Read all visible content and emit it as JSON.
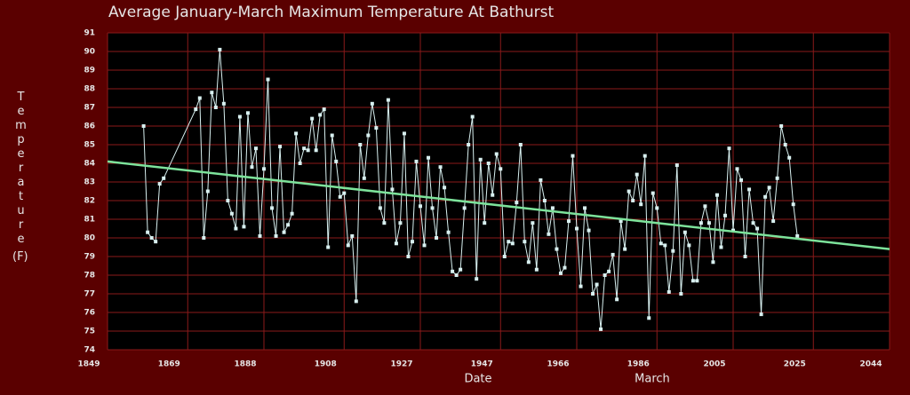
{
  "chart_data": {
    "type": "line",
    "title": "Average January-March Maximum Temperature At Bathurst",
    "xlabel": "Date",
    "xsublabel": "March",
    "ylabel": "Temperature",
    "yunit": "(F)",
    "xlim": [
      1849,
      2044
    ],
    "ylim": [
      74,
      91
    ],
    "xticks": [
      1849,
      1869,
      1888,
      1908,
      1927,
      1947,
      1966,
      1986,
      2005,
      2025,
      2044
    ],
    "yticks": [
      74,
      75,
      76,
      77,
      78,
      79,
      80,
      81,
      82,
      83,
      84,
      85,
      86,
      87,
      88,
      89,
      90,
      91
    ],
    "grid": true,
    "series": [
      {
        "color": "#d8f0f0",
        "x": [
          1858,
          1859,
          1860,
          1861,
          1862,
          1863,
          1871,
          1872,
          1873,
          1874,
          1875,
          1876,
          1877,
          1878,
          1879,
          1880,
          1881,
          1882,
          1883,
          1884,
          1885,
          1886,
          1887,
          1888,
          1889,
          1890,
          1891,
          1892,
          1893,
          1894,
          1895,
          1896,
          1897,
          1898,
          1899,
          1900,
          1901,
          1902,
          1903,
          1904,
          1905,
          1906,
          1907,
          1908,
          1909,
          1910,
          1911,
          1912,
          1913,
          1914,
          1915,
          1916,
          1917,
          1918,
          1919,
          1920,
          1921,
          1922,
          1923,
          1924,
          1925,
          1926,
          1927,
          1928,
          1929,
          1930,
          1931,
          1932,
          1933,
          1934,
          1935,
          1936,
          1937,
          1938,
          1939,
          1940,
          1941,
          1942,
          1943,
          1944,
          1945,
          1946,
          1947,
          1948,
          1949,
          1950,
          1951,
          1952,
          1953,
          1954,
          1955,
          1956,
          1957,
          1958,
          1959,
          1960,
          1961,
          1962,
          1963,
          1964,
          1965,
          1966,
          1967,
          1968,
          1969,
          1970,
          1971,
          1972,
          1973,
          1974,
          1975,
          1976,
          1977,
          1978,
          1979,
          1980,
          1981,
          1982,
          1983,
          1984,
          1985,
          1986,
          1987,
          1988,
          1989,
          1990,
          1991,
          1992,
          1993,
          1994,
          1995,
          1996,
          1997,
          1998,
          1999,
          2000,
          2001,
          2002,
          2003,
          2004,
          2005,
          2006,
          2007,
          2008,
          2009,
          2010,
          2011,
          2012,
          2013,
          2014,
          2015,
          2016,
          2017,
          2018,
          2019,
          2020,
          2021
        ],
        "values": [
          86.0,
          80.3,
          80.0,
          79.8,
          82.9,
          83.2,
          86.9,
          87.5,
          80.0,
          82.5,
          87.8,
          87.0,
          90.1,
          87.2,
          82.0,
          81.3,
          80.5,
          86.5,
          80.6,
          86.7,
          83.8,
          84.8,
          80.1,
          83.7,
          88.5,
          81.6,
          80.1,
          84.9,
          80.3,
          80.7,
          81.3,
          85.6,
          84.0,
          84.8,
          84.7,
          86.4,
          84.7,
          86.6,
          86.9,
          79.5,
          85.5,
          84.1,
          82.2,
          82.4,
          79.6,
          80.1,
          76.6,
          85.0,
          83.2,
          85.5,
          87.2,
          85.9,
          81.6,
          80.8,
          87.4,
          82.6,
          79.7,
          80.8,
          85.6,
          79.0,
          79.8,
          84.1,
          81.7,
          79.6,
          84.3,
          81.6,
          80.0,
          83.8,
          82.7,
          80.3,
          78.2,
          78.0,
          78.3,
          81.6,
          85.0,
          86.5,
          77.8,
          84.2,
          80.8,
          84.0,
          82.3,
          84.5,
          83.7,
          79.0,
          79.8,
          79.7,
          81.9,
          85.0,
          79.8,
          78.7,
          80.8,
          78.3,
          83.1,
          82.0,
          80.2,
          81.6,
          79.4,
          78.1,
          78.4,
          80.9,
          84.4,
          80.5,
          77.4,
          81.6,
          80.4,
          77.0,
          77.5,
          75.1,
          78.0,
          78.2,
          79.1,
          76.7,
          80.9,
          79.4,
          82.5,
          82.0,
          83.4,
          81.8,
          84.4,
          75.7,
          82.4,
          81.6,
          79.7,
          79.6,
          77.1,
          79.3,
          83.9,
          77.0,
          80.3,
          79.6,
          77.7,
          77.7,
          80.8,
          81.7,
          80.8,
          78.7,
          82.3,
          79.5,
          81.2,
          84.8,
          80.4,
          83.7,
          83.1,
          79.0,
          82.6,
          80.8,
          80.5,
          75.9,
          82.2,
          82.7,
          80.9,
          83.2,
          86.0,
          85.0,
          84.3,
          81.8,
          80.1
        ]
      },
      {
        "color": "#7de39b",
        "x": [
          1849,
          2044
        ],
        "values": [
          84.1,
          79.4
        ]
      }
    ]
  }
}
